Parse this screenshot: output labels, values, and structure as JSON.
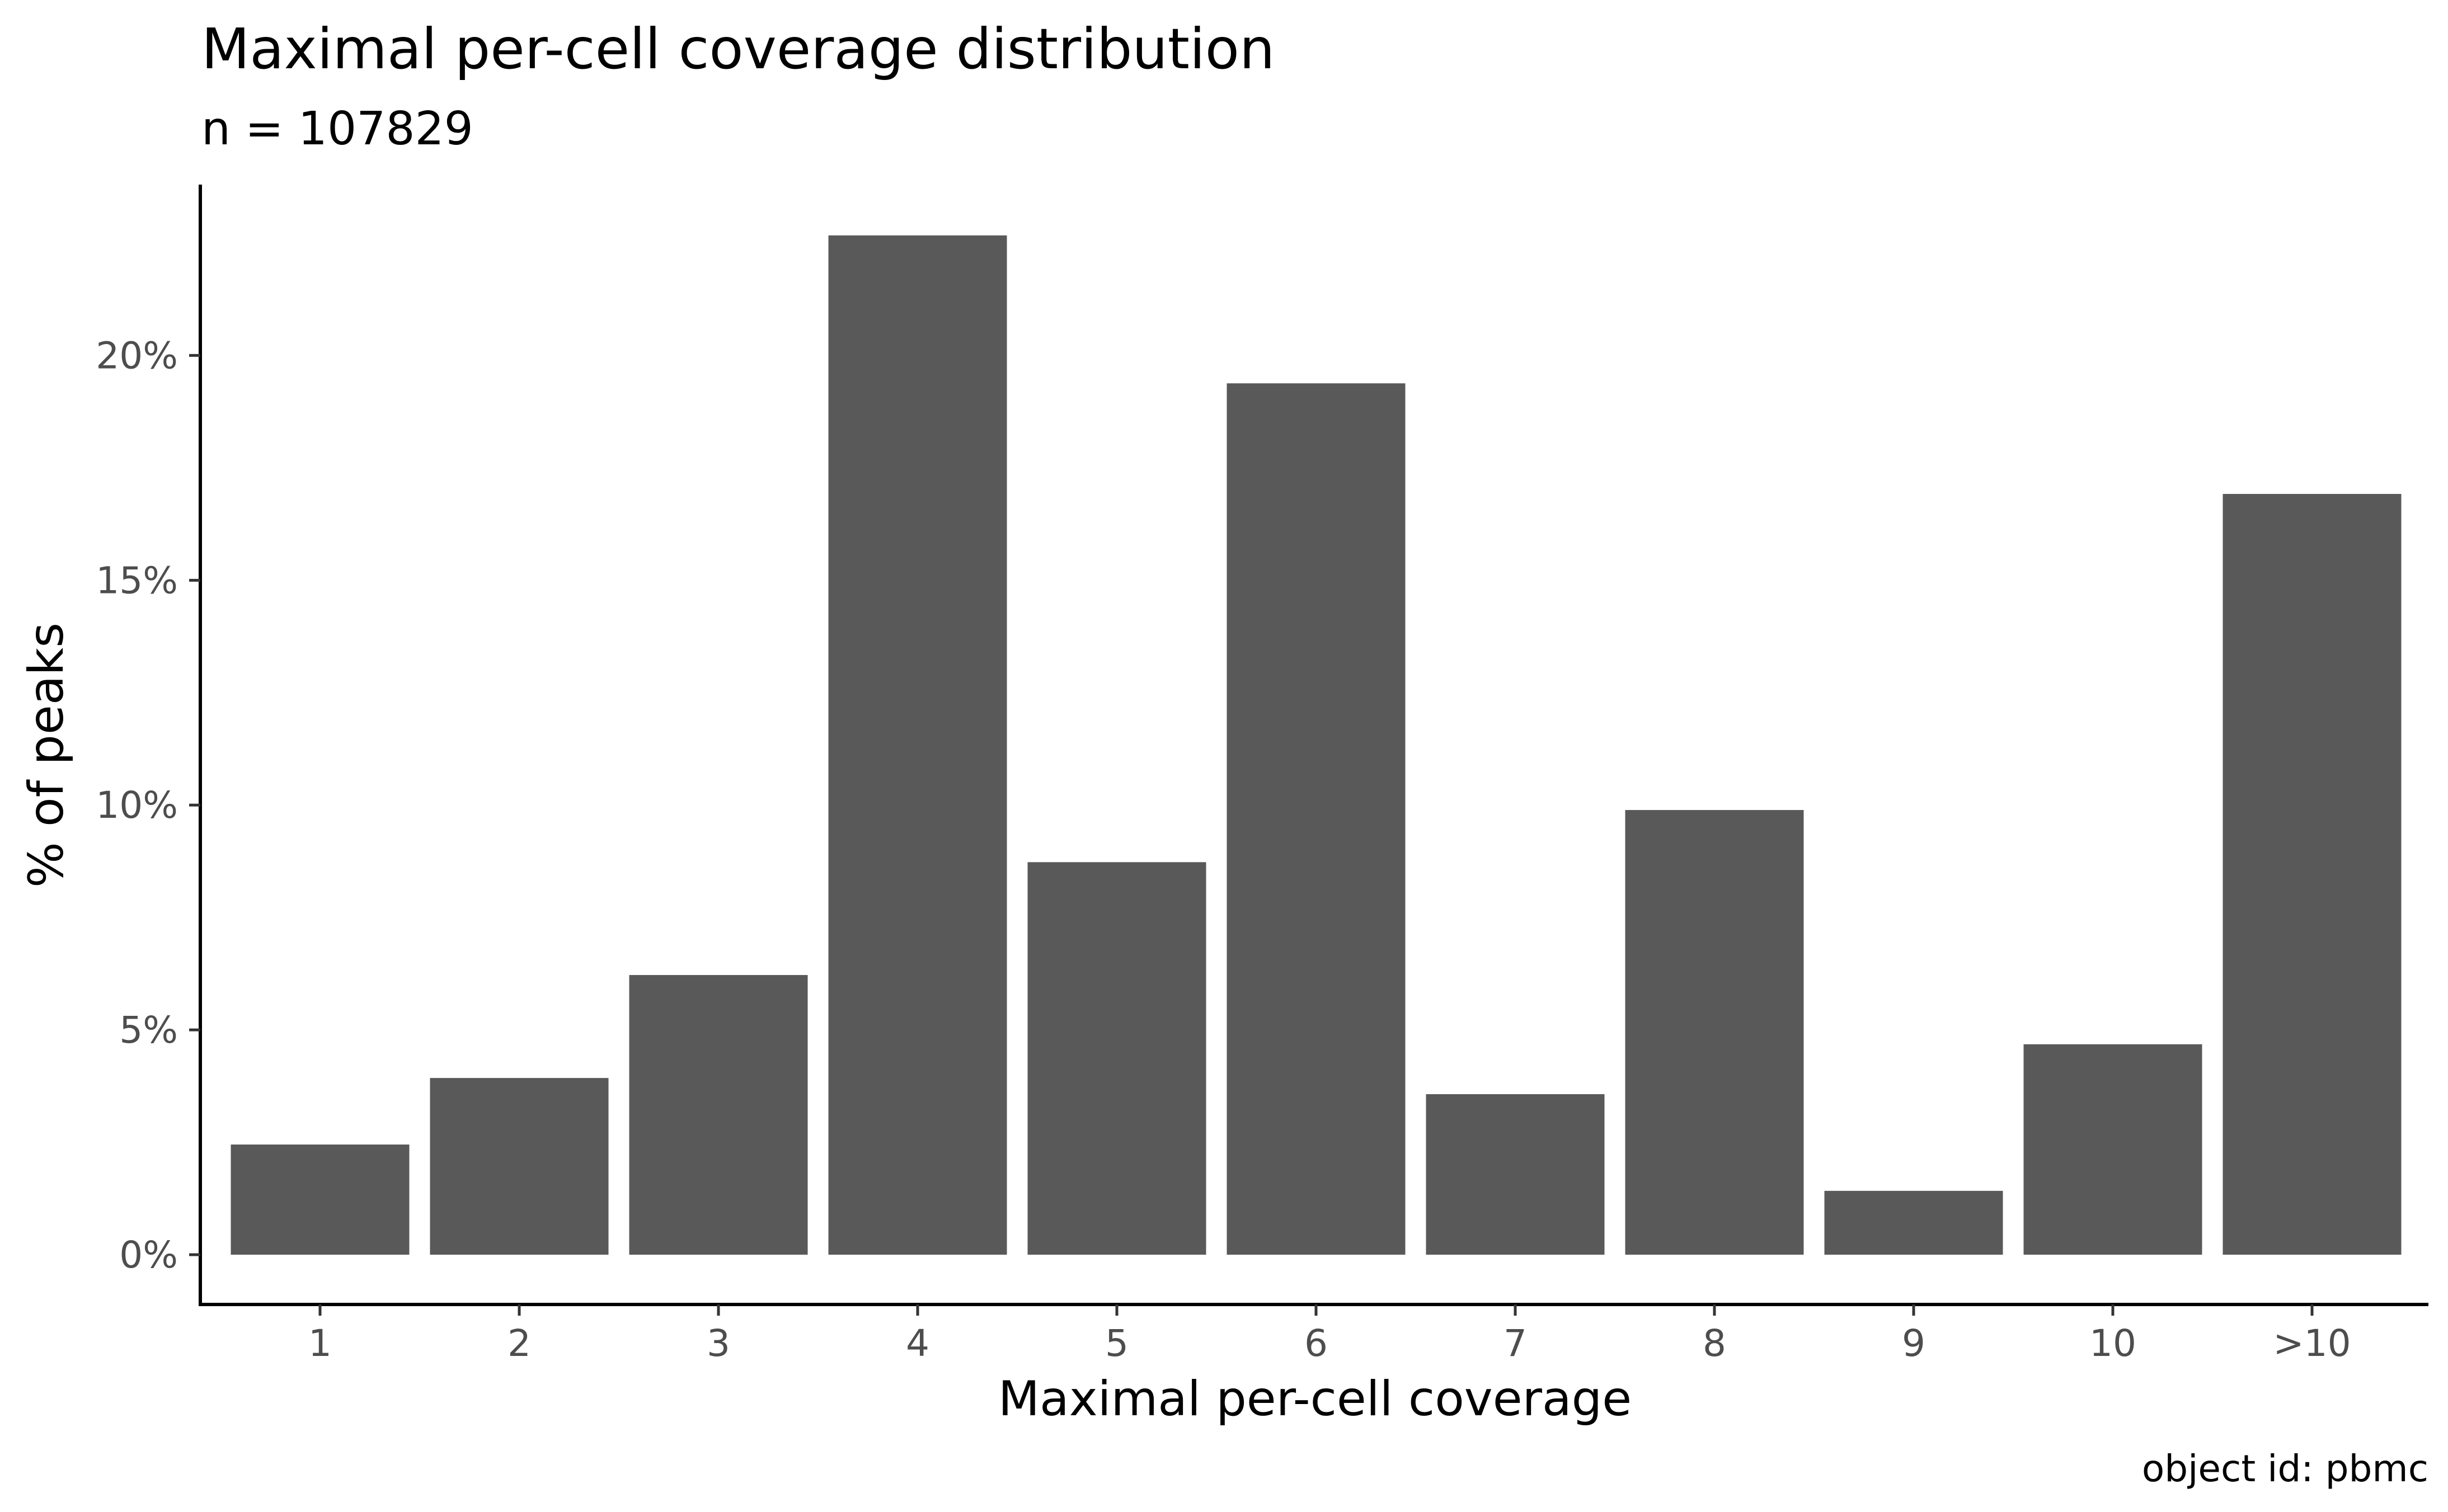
{
  "chart_data": {
    "type": "bar",
    "title": "Maximal per-cell coverage distribution",
    "subtitle": "n = 107829",
    "caption": "object id: pbmc",
    "xlabel": "Maximal per-cell coverage",
    "ylabel": "% of peaks",
    "categories": [
      "1",
      "2",
      "3",
      "4",
      "5",
      "6",
      "7",
      "8",
      "9",
      "10",
      ">10"
    ],
    "values": [
      2.45,
      3.93,
      6.22,
      22.67,
      8.73,
      19.38,
      3.57,
      9.89,
      1.42,
      4.68,
      16.92
    ],
    "ylim": [
      0,
      23.8
    ],
    "yticks": [
      0,
      5,
      10,
      15,
      20
    ],
    "ytick_labels": [
      "0%",
      "5%",
      "10%",
      "15%",
      "20%"
    ],
    "bar_color": "#595959",
    "grid": false,
    "legend": "none"
  }
}
